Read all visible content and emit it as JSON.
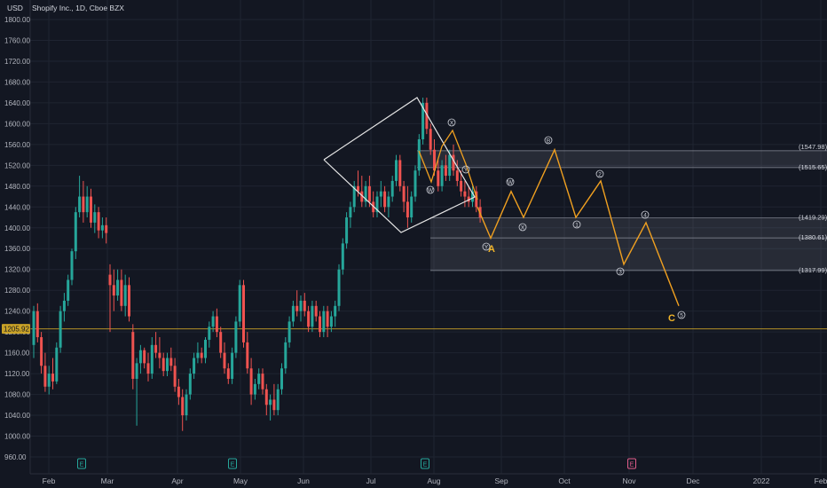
{
  "header": {
    "title": "Shopify Inc., 1D, Cboe BZX",
    "currency": "USD"
  },
  "colors": {
    "background": "#131722",
    "grid": "#1f2431",
    "up": "#26a69a",
    "down": "#ef5350",
    "projection": "#f0a020",
    "current_price_line": "#c9a227",
    "zone_fill": "#b2b5be"
  },
  "chart_data": {
    "type": "candlestick",
    "title": "Shopify Inc., 1D, Cboe BZX",
    "ylabel": "USD",
    "ylim": [
      940,
      1820
    ],
    "y_ticks": [
      "960.00",
      "1000.00",
      "1040.00",
      "1080.00",
      "1120.00",
      "1160.00",
      "1200.00",
      "1240.00",
      "1280.00",
      "1320.00",
      "1360.00",
      "1400.00",
      "1440.00",
      "1480.00",
      "1520.00",
      "1560.00",
      "1600.00",
      "1640.00",
      "1680.00",
      "1720.00",
      "1760.00",
      "1800.00"
    ],
    "x_ticks": [
      "Feb",
      "Mar",
      "Apr",
      "May",
      "Jun",
      "Jul",
      "Aug",
      "Sep",
      "Oct",
      "Nov",
      "Dec",
      "2022",
      "Feb"
    ],
    "current_price": "1205.92",
    "levels": [
      {
        "label": "(1547.98)",
        "value": 1547.98
      },
      {
        "label": "(1515.65)",
        "value": 1515.65
      },
      {
        "label": "(1419.29)",
        "value": 1419.29
      },
      {
        "label": "(1380.61)",
        "value": 1380.61
      },
      {
        "label": "(1317.99)",
        "value": 1317.99
      }
    ],
    "events": [
      {
        "label": "E",
        "date": "Feb"
      },
      {
        "label": "E",
        "date": "May"
      },
      {
        "label": "E",
        "date": "Jul"
      },
      {
        "label": "E",
        "date": "Nov"
      }
    ],
    "projection_path": [
      {
        "date": "Aug 17",
        "price": 1440
      },
      {
        "date": "Aug 23",
        "price": 1380
      },
      {
        "date": "Aug 29",
        "price": 1470
      },
      {
        "date": "Sep 3",
        "price": 1420
      },
      {
        "date": "Sep 28",
        "price": 1550
      },
      {
        "date": "Oct 7",
        "price": 1420
      },
      {
        "date": "Oct 19",
        "price": 1490
      },
      {
        "date": "Oct 30",
        "price": 1330
      },
      {
        "date": "Nov 8",
        "price": 1410
      },
      {
        "date": "Nov 26",
        "price": 1250
      }
    ],
    "wave_labels": [
      "W",
      "X",
      "Y",
      "W",
      "X",
      "Y",
      "B",
      "A",
      "1",
      "2",
      "3",
      "4",
      "5",
      "C"
    ],
    "candles": [
      {
        "o": 1175,
        "h": 1250,
        "l": 1150,
        "c": 1240
      },
      {
        "o": 1240,
        "h": 1255,
        "l": 1180,
        "c": 1190
      },
      {
        "o": 1190,
        "h": 1200,
        "l": 1120,
        "c": 1135
      },
      {
        "o": 1135,
        "h": 1160,
        "l": 1085,
        "c": 1095
      },
      {
        "o": 1095,
        "h": 1135,
        "l": 1080,
        "c": 1120
      },
      {
        "o": 1120,
        "h": 1150,
        "l": 1090,
        "c": 1105
      },
      {
        "o": 1105,
        "h": 1180,
        "l": 1100,
        "c": 1170
      },
      {
        "o": 1170,
        "h": 1250,
        "l": 1160,
        "c": 1240
      },
      {
        "o": 1240,
        "h": 1275,
        "l": 1220,
        "c": 1260
      },
      {
        "o": 1260,
        "h": 1310,
        "l": 1250,
        "c": 1300
      },
      {
        "o": 1300,
        "h": 1360,
        "l": 1290,
        "c": 1355
      },
      {
        "o": 1355,
        "h": 1440,
        "l": 1340,
        "c": 1430
      },
      {
        "o": 1430,
        "h": 1500,
        "l": 1420,
        "c": 1460
      },
      {
        "o": 1460,
        "h": 1490,
        "l": 1410,
        "c": 1430
      },
      {
        "o": 1430,
        "h": 1480,
        "l": 1420,
        "c": 1460
      },
      {
        "o": 1460,
        "h": 1475,
        "l": 1400,
        "c": 1410
      },
      {
        "o": 1410,
        "h": 1445,
        "l": 1390,
        "c": 1430
      },
      {
        "o": 1430,
        "h": 1440,
        "l": 1380,
        "c": 1395
      },
      {
        "o": 1395,
        "h": 1420,
        "l": 1380,
        "c": 1405
      },
      {
        "o": 1405,
        "h": 1420,
        "l": 1370,
        "c": 1390
      },
      {
        "o": 1310,
        "h": 1330,
        "l": 1200,
        "c": 1290
      },
      {
        "o": 1290,
        "h": 1320,
        "l": 1240,
        "c": 1270
      },
      {
        "o": 1270,
        "h": 1320,
        "l": 1260,
        "c": 1300
      },
      {
        "o": 1300,
        "h": 1320,
        "l": 1240,
        "c": 1250
      },
      {
        "o": 1250,
        "h": 1310,
        "l": 1230,
        "c": 1290
      },
      {
        "o": 1290,
        "h": 1305,
        "l": 1220,
        "c": 1230
      },
      {
        "o": 1200,
        "h": 1215,
        "l": 1090,
        "c": 1110
      },
      {
        "o": 1110,
        "h": 1150,
        "l": 1020,
        "c": 1140
      },
      {
        "o": 1140,
        "h": 1175,
        "l": 1120,
        "c": 1165
      },
      {
        "o": 1165,
        "h": 1170,
        "l": 1130,
        "c": 1140
      },
      {
        "o": 1140,
        "h": 1160,
        "l": 1105,
        "c": 1120
      },
      {
        "o": 1120,
        "h": 1190,
        "l": 1110,
        "c": 1175
      },
      {
        "o": 1175,
        "h": 1200,
        "l": 1150,
        "c": 1160
      },
      {
        "o": 1160,
        "h": 1190,
        "l": 1130,
        "c": 1150
      },
      {
        "o": 1150,
        "h": 1160,
        "l": 1115,
        "c": 1125
      },
      {
        "o": 1125,
        "h": 1160,
        "l": 1115,
        "c": 1150
      },
      {
        "o": 1150,
        "h": 1170,
        "l": 1125,
        "c": 1135
      },
      {
        "o": 1135,
        "h": 1150,
        "l": 1085,
        "c": 1095
      },
      {
        "o": 1095,
        "h": 1110,
        "l": 1060,
        "c": 1075
      },
      {
        "o": 1075,
        "h": 1090,
        "l": 1010,
        "c": 1040
      },
      {
        "o": 1040,
        "h": 1090,
        "l": 1030,
        "c": 1080
      },
      {
        "o": 1080,
        "h": 1130,
        "l": 1070,
        "c": 1120
      },
      {
        "o": 1120,
        "h": 1160,
        "l": 1110,
        "c": 1150
      },
      {
        "o": 1150,
        "h": 1180,
        "l": 1140,
        "c": 1160
      },
      {
        "o": 1160,
        "h": 1170,
        "l": 1140,
        "c": 1150
      },
      {
        "o": 1150,
        "h": 1190,
        "l": 1140,
        "c": 1185
      },
      {
        "o": 1185,
        "h": 1220,
        "l": 1170,
        "c": 1210
      },
      {
        "o": 1210,
        "h": 1240,
        "l": 1200,
        "c": 1230
      },
      {
        "o": 1230,
        "h": 1245,
        "l": 1190,
        "c": 1200
      },
      {
        "o": 1200,
        "h": 1210,
        "l": 1150,
        "c": 1160
      },
      {
        "o": 1160,
        "h": 1180,
        "l": 1120,
        "c": 1130
      },
      {
        "o": 1130,
        "h": 1140,
        "l": 1100,
        "c": 1110
      },
      {
        "o": 1110,
        "h": 1170,
        "l": 1100,
        "c": 1160
      },
      {
        "o": 1160,
        "h": 1230,
        "l": 1150,
        "c": 1220
      },
      {
        "o": 1220,
        "h": 1300,
        "l": 1210,
        "c": 1290
      },
      {
        "o": 1290,
        "h": 1300,
        "l": 1170,
        "c": 1180
      },
      {
        "o": 1180,
        "h": 1200,
        "l": 1120,
        "c": 1130
      },
      {
        "o": 1130,
        "h": 1150,
        "l": 1060,
        "c": 1080
      },
      {
        "o": 1080,
        "h": 1110,
        "l": 1070,
        "c": 1100
      },
      {
        "o": 1100,
        "h": 1130,
        "l": 1090,
        "c": 1120
      },
      {
        "o": 1120,
        "h": 1130,
        "l": 1080,
        "c": 1090
      },
      {
        "o": 1090,
        "h": 1100,
        "l": 1040,
        "c": 1060
      },
      {
        "o": 1060,
        "h": 1080,
        "l": 1030,
        "c": 1070
      },
      {
        "o": 1070,
        "h": 1100,
        "l": 1040,
        "c": 1050
      },
      {
        "o": 1050,
        "h": 1100,
        "l": 1040,
        "c": 1090
      },
      {
        "o": 1090,
        "h": 1140,
        "l": 1080,
        "c": 1130
      },
      {
        "o": 1130,
        "h": 1190,
        "l": 1120,
        "c": 1180
      },
      {
        "o": 1180,
        "h": 1230,
        "l": 1170,
        "c": 1220
      },
      {
        "o": 1220,
        "h": 1260,
        "l": 1210,
        "c": 1250
      },
      {
        "o": 1250,
        "h": 1280,
        "l": 1230,
        "c": 1240
      },
      {
        "o": 1240,
        "h": 1270,
        "l": 1220,
        "c": 1260
      },
      {
        "o": 1260,
        "h": 1275,
        "l": 1230,
        "c": 1240
      },
      {
        "o": 1240,
        "h": 1250,
        "l": 1200,
        "c": 1210
      },
      {
        "o": 1210,
        "h": 1260,
        "l": 1200,
        "c": 1250
      },
      {
        "o": 1250,
        "h": 1260,
        "l": 1220,
        "c": 1230
      },
      {
        "o": 1230,
        "h": 1240,
        "l": 1190,
        "c": 1200
      },
      {
        "o": 1200,
        "h": 1250,
        "l": 1190,
        "c": 1240
      },
      {
        "o": 1240,
        "h": 1250,
        "l": 1190,
        "c": 1210
      },
      {
        "o": 1210,
        "h": 1240,
        "l": 1200,
        "c": 1230
      },
      {
        "o": 1230,
        "h": 1260,
        "l": 1210,
        "c": 1250
      },
      {
        "o": 1250,
        "h": 1330,
        "l": 1240,
        "c": 1320
      },
      {
        "o": 1320,
        "h": 1380,
        "l": 1310,
        "c": 1370
      },
      {
        "o": 1370,
        "h": 1430,
        "l": 1360,
        "c": 1420
      },
      {
        "o": 1420,
        "h": 1450,
        "l": 1400,
        "c": 1440
      },
      {
        "o": 1440,
        "h": 1490,
        "l": 1430,
        "c": 1480
      },
      {
        "o": 1480,
        "h": 1510,
        "l": 1460,
        "c": 1470
      },
      {
        "o": 1470,
        "h": 1500,
        "l": 1440,
        "c": 1450
      },
      {
        "o": 1450,
        "h": 1490,
        "l": 1440,
        "c": 1480
      },
      {
        "o": 1480,
        "h": 1500,
        "l": 1440,
        "c": 1450
      },
      {
        "o": 1450,
        "h": 1470,
        "l": 1420,
        "c": 1430
      },
      {
        "o": 1430,
        "h": 1470,
        "l": 1420,
        "c": 1460
      },
      {
        "o": 1460,
        "h": 1490,
        "l": 1440,
        "c": 1470
      },
      {
        "o": 1470,
        "h": 1480,
        "l": 1430,
        "c": 1440
      },
      {
        "o": 1440,
        "h": 1470,
        "l": 1420,
        "c": 1460
      },
      {
        "o": 1460,
        "h": 1500,
        "l": 1450,
        "c": 1490
      },
      {
        "o": 1490,
        "h": 1540,
        "l": 1480,
        "c": 1530
      },
      {
        "o": 1530,
        "h": 1540,
        "l": 1470,
        "c": 1480
      },
      {
        "o": 1480,
        "h": 1490,
        "l": 1430,
        "c": 1450
      },
      {
        "o": 1450,
        "h": 1480,
        "l": 1400,
        "c": 1420
      },
      {
        "o": 1420,
        "h": 1470,
        "l": 1410,
        "c": 1460
      },
      {
        "o": 1460,
        "h": 1520,
        "l": 1450,
        "c": 1510
      },
      {
        "o": 1510,
        "h": 1580,
        "l": 1500,
        "c": 1570
      },
      {
        "o": 1570,
        "h": 1650,
        "l": 1560,
        "c": 1640
      },
      {
        "o": 1640,
        "h": 1650,
        "l": 1580,
        "c": 1590
      },
      {
        "o": 1590,
        "h": 1600,
        "l": 1540,
        "c": 1550
      },
      {
        "o": 1550,
        "h": 1570,
        "l": 1500,
        "c": 1510
      },
      {
        "o": 1510,
        "h": 1530,
        "l": 1470,
        "c": 1480
      },
      {
        "o": 1480,
        "h": 1530,
        "l": 1470,
        "c": 1520
      },
      {
        "o": 1520,
        "h": 1540,
        "l": 1490,
        "c": 1500
      },
      {
        "o": 1500,
        "h": 1550,
        "l": 1490,
        "c": 1540
      },
      {
        "o": 1540,
        "h": 1560,
        "l": 1500,
        "c": 1510
      },
      {
        "o": 1510,
        "h": 1530,
        "l": 1480,
        "c": 1490
      },
      {
        "o": 1490,
        "h": 1510,
        "l": 1460,
        "c": 1470
      },
      {
        "o": 1470,
        "h": 1490,
        "l": 1440,
        "c": 1460
      },
      {
        "o": 1460,
        "h": 1480,
        "l": 1440,
        "c": 1450
      },
      {
        "o": 1450,
        "h": 1480,
        "l": 1440,
        "c": 1470
      },
      {
        "o": 1470,
        "h": 1480,
        "l": 1430,
        "c": 1440
      },
      {
        "o": 1440,
        "h": 1455,
        "l": 1410,
        "c": 1420
      }
    ]
  }
}
